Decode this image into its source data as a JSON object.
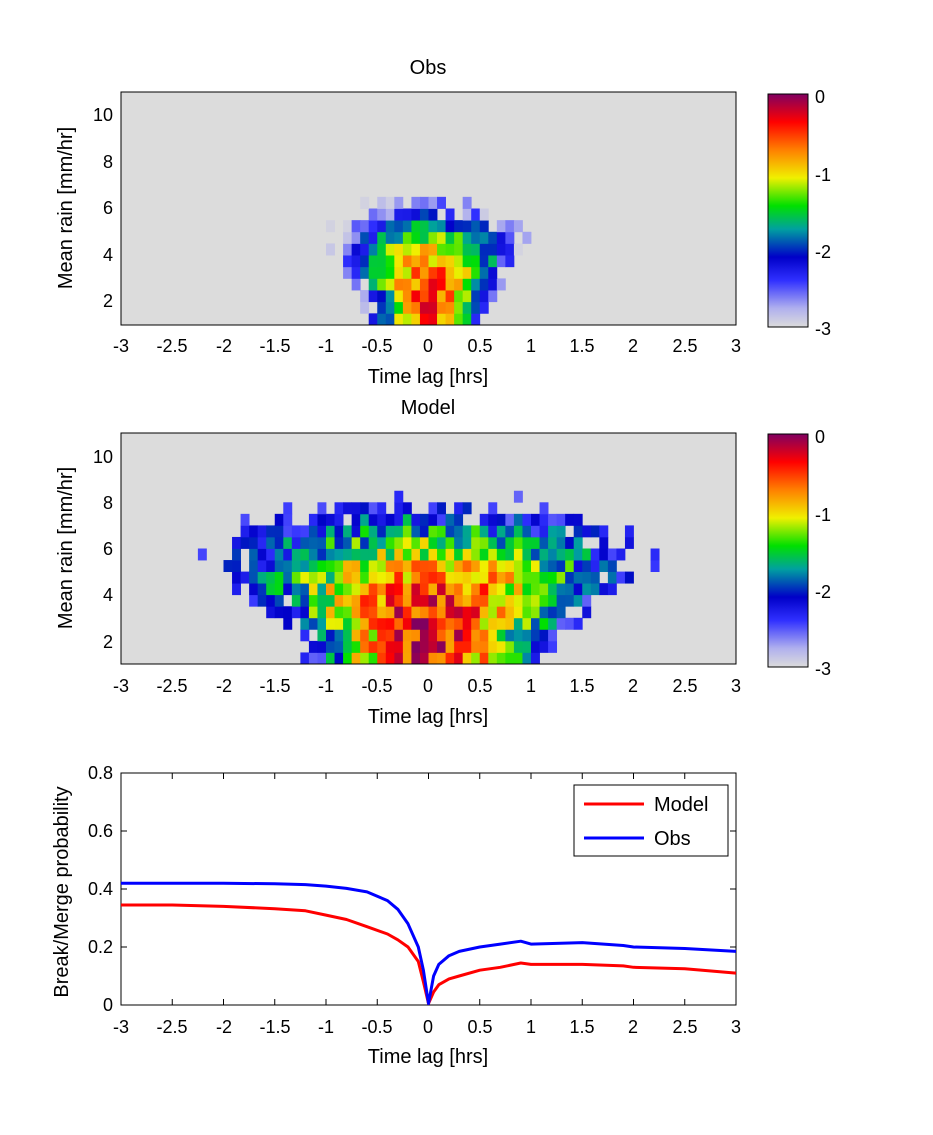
{
  "colors": {
    "axes_background": "#dcdcdc",
    "model_line": "#ff0000",
    "obs_line": "#0000ff"
  },
  "chart_data": [
    {
      "type": "heatmap",
      "title": "Obs",
      "xlabel": "Time lag [hrs]",
      "ylabel": "Mean rain [mm/hr]",
      "xlim": [
        -3,
        3
      ],
      "ylim": [
        1,
        11
      ],
      "xticks": [
        "-3",
        "-2.5",
        "-2",
        "-1.5",
        "-1",
        "-0.5",
        "0",
        "0.5",
        "1",
        "1.5",
        "2",
        "2.5",
        "3"
      ],
      "yticks": [
        "2",
        "4",
        "6",
        "8",
        "10"
      ],
      "colorbar": {
        "range": [
          -3,
          0
        ],
        "ticks": [
          "0",
          "-1",
          "-2",
          "-3"
        ],
        "colormap": "jet-with-white-low-end"
      },
      "mask_below": -2.95,
      "field": {
        "center_rain": 2.2,
        "rain_spread": 3.2,
        "time_spread": 0.78,
        "top": 11,
        "peak": -0.45,
        "noise": 0.35,
        "seed": 11
      }
    },
    {
      "type": "heatmap",
      "title": "Model",
      "xlabel": "Time lag [hrs]",
      "ylabel": "Mean rain [mm/hr]",
      "xlim": [
        -3,
        3
      ],
      "ylim": [
        1,
        11
      ],
      "xticks": [
        "-3",
        "-2.5",
        "-2",
        "-1.5",
        "-1",
        "-0.5",
        "0",
        "0.5",
        "1",
        "1.5",
        "2",
        "2.5",
        "3"
      ],
      "yticks": [
        "2",
        "4",
        "6",
        "8",
        "10"
      ],
      "colorbar": {
        "range": [
          -3,
          0
        ],
        "ticks": [
          "0",
          "-1",
          "-2",
          "-3"
        ],
        "colormap": "jet-with-white-low-end"
      },
      "mask_below": -2.55,
      "field": {
        "center_rain": 2.3,
        "rain_spread": 4.5,
        "time_spread": 1.6,
        "top": 11,
        "peak": -0.3,
        "noise": 0.45,
        "seed": 29
      }
    },
    {
      "type": "line",
      "title": "",
      "xlabel": "Time lag [hrs]",
      "ylabel": "Break/Merge probability",
      "xlim": [
        -3,
        3
      ],
      "ylim": [
        0,
        0.8
      ],
      "xticks": [
        "-3",
        "-2.5",
        "-2",
        "-1.5",
        "-1",
        "-0.5",
        "0",
        "0.5",
        "1",
        "1.5",
        "2",
        "2.5",
        "3"
      ],
      "yticks": [
        "0",
        "0.2",
        "0.4",
        "0.6",
        "0.8"
      ],
      "legend": "top-right",
      "grid": false,
      "series": [
        {
          "name": "Model",
          "color": "#ff0000",
          "x": [
            -3,
            -2.5,
            -2,
            -1.5,
            -1.2,
            -1,
            -0.8,
            -0.6,
            -0.4,
            -0.3,
            -0.2,
            -0.1,
            -0.05,
            0,
            0.05,
            0.1,
            0.2,
            0.3,
            0.5,
            0.7,
            0.9,
            1,
            1.5,
            1.9,
            2,
            2.5,
            3
          ],
          "y": [
            0.345,
            0.345,
            0.34,
            0.332,
            0.325,
            0.31,
            0.295,
            0.27,
            0.245,
            0.225,
            0.2,
            0.15,
            0.08,
            0.005,
            0.045,
            0.07,
            0.09,
            0.1,
            0.12,
            0.13,
            0.145,
            0.14,
            0.14,
            0.135,
            0.13,
            0.125,
            0.11
          ]
        },
        {
          "name": "Obs",
          "color": "#0000ff",
          "x": [
            -3,
            -2.5,
            -2,
            -1.5,
            -1.2,
            -1,
            -0.8,
            -0.6,
            -0.4,
            -0.3,
            -0.2,
            -0.1,
            -0.05,
            0,
            0.05,
            0.1,
            0.2,
            0.3,
            0.5,
            0.7,
            0.9,
            1,
            1.5,
            1.9,
            2,
            2.5,
            3
          ],
          "y": [
            0.42,
            0.42,
            0.42,
            0.418,
            0.415,
            0.41,
            0.402,
            0.39,
            0.36,
            0.33,
            0.28,
            0.2,
            0.12,
            0.005,
            0.1,
            0.14,
            0.17,
            0.185,
            0.2,
            0.21,
            0.22,
            0.21,
            0.215,
            0.205,
            0.2,
            0.195,
            0.185
          ]
        }
      ]
    }
  ]
}
